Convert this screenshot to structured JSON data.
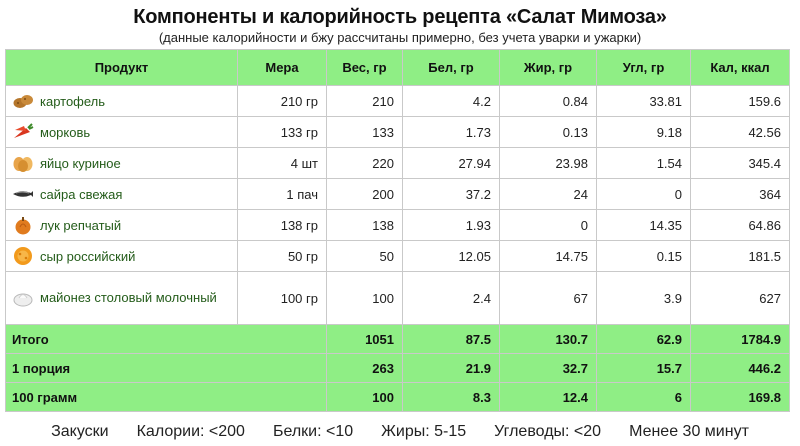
{
  "title": "Компоненты и калорийность рецепта «Салат Мимоза»",
  "subtitle": "(данные калорийности и бжу рассчитаны примерно, без учета уварки и ужарки)",
  "headers": [
    "Продукт",
    "Мера",
    "Вес, гр",
    "Бел, гр",
    "Жир, гр",
    "Угл, гр",
    "Кал, ккал"
  ],
  "rows": [
    {
      "icon": "potato-icon",
      "name": "картофель",
      "mera": "210 гр",
      "ves": "210",
      "bel": "4.2",
      "zhir": "0.84",
      "ugl": "33.81",
      "kal": "159.6"
    },
    {
      "icon": "carrot-icon",
      "name": "морковь",
      "mera": "133 гр",
      "ves": "133",
      "bel": "1.73",
      "zhir": "0.13",
      "ugl": "9.18",
      "kal": "42.56"
    },
    {
      "icon": "egg-icon",
      "name": "яйцо куриное",
      "mera": "4 шт",
      "ves": "220",
      "bel": "27.94",
      "zhir": "23.98",
      "ugl": "1.54",
      "kal": "345.4"
    },
    {
      "icon": "fish-icon",
      "name": "сайра свежая",
      "mera": "1 пач",
      "ves": "200",
      "bel": "37.2",
      "zhir": "24",
      "ugl": "0",
      "kal": "364"
    },
    {
      "icon": "onion-icon",
      "name": "лук репчатый",
      "mera": "138 гр",
      "ves": "138",
      "bel": "1.93",
      "zhir": "0",
      "ugl": "14.35",
      "kal": "64.86"
    },
    {
      "icon": "cheese-icon",
      "name": "сыр российский",
      "mera": "50 гр",
      "ves": "50",
      "bel": "12.05",
      "zhir": "14.75",
      "ugl": "0.15",
      "kal": "181.5"
    },
    {
      "icon": "mayonnaise-icon",
      "name": "майонез столовый молочный",
      "mera": "100 гр",
      "ves": "100",
      "bel": "2.4",
      "zhir": "67",
      "ugl": "3.9",
      "kal": "627"
    }
  ],
  "totals": [
    {
      "label": "Итого",
      "ves": "1051",
      "bel": "87.5",
      "zhir": "130.7",
      "ugl": "62.9",
      "kal": "1784.9"
    },
    {
      "label": "1 порция",
      "ves": "263",
      "bel": "21.9",
      "zhir": "32.7",
      "ugl": "15.7",
      "kal": "446.2"
    },
    {
      "label": "100 грамм",
      "ves": "100",
      "bel": "8.3",
      "zhir": "12.4",
      "ugl": "6",
      "kal": "169.8"
    }
  ],
  "footer": [
    "Закуски",
    "Калории: <200",
    "Белки: <10",
    "Жиры: 5-15",
    "Углеводы: <20",
    "Менее 30 минут"
  ],
  "colors": {
    "header_bg": "#8fee85",
    "product_text": "#245c1a",
    "border": "#c9c9c9"
  }
}
